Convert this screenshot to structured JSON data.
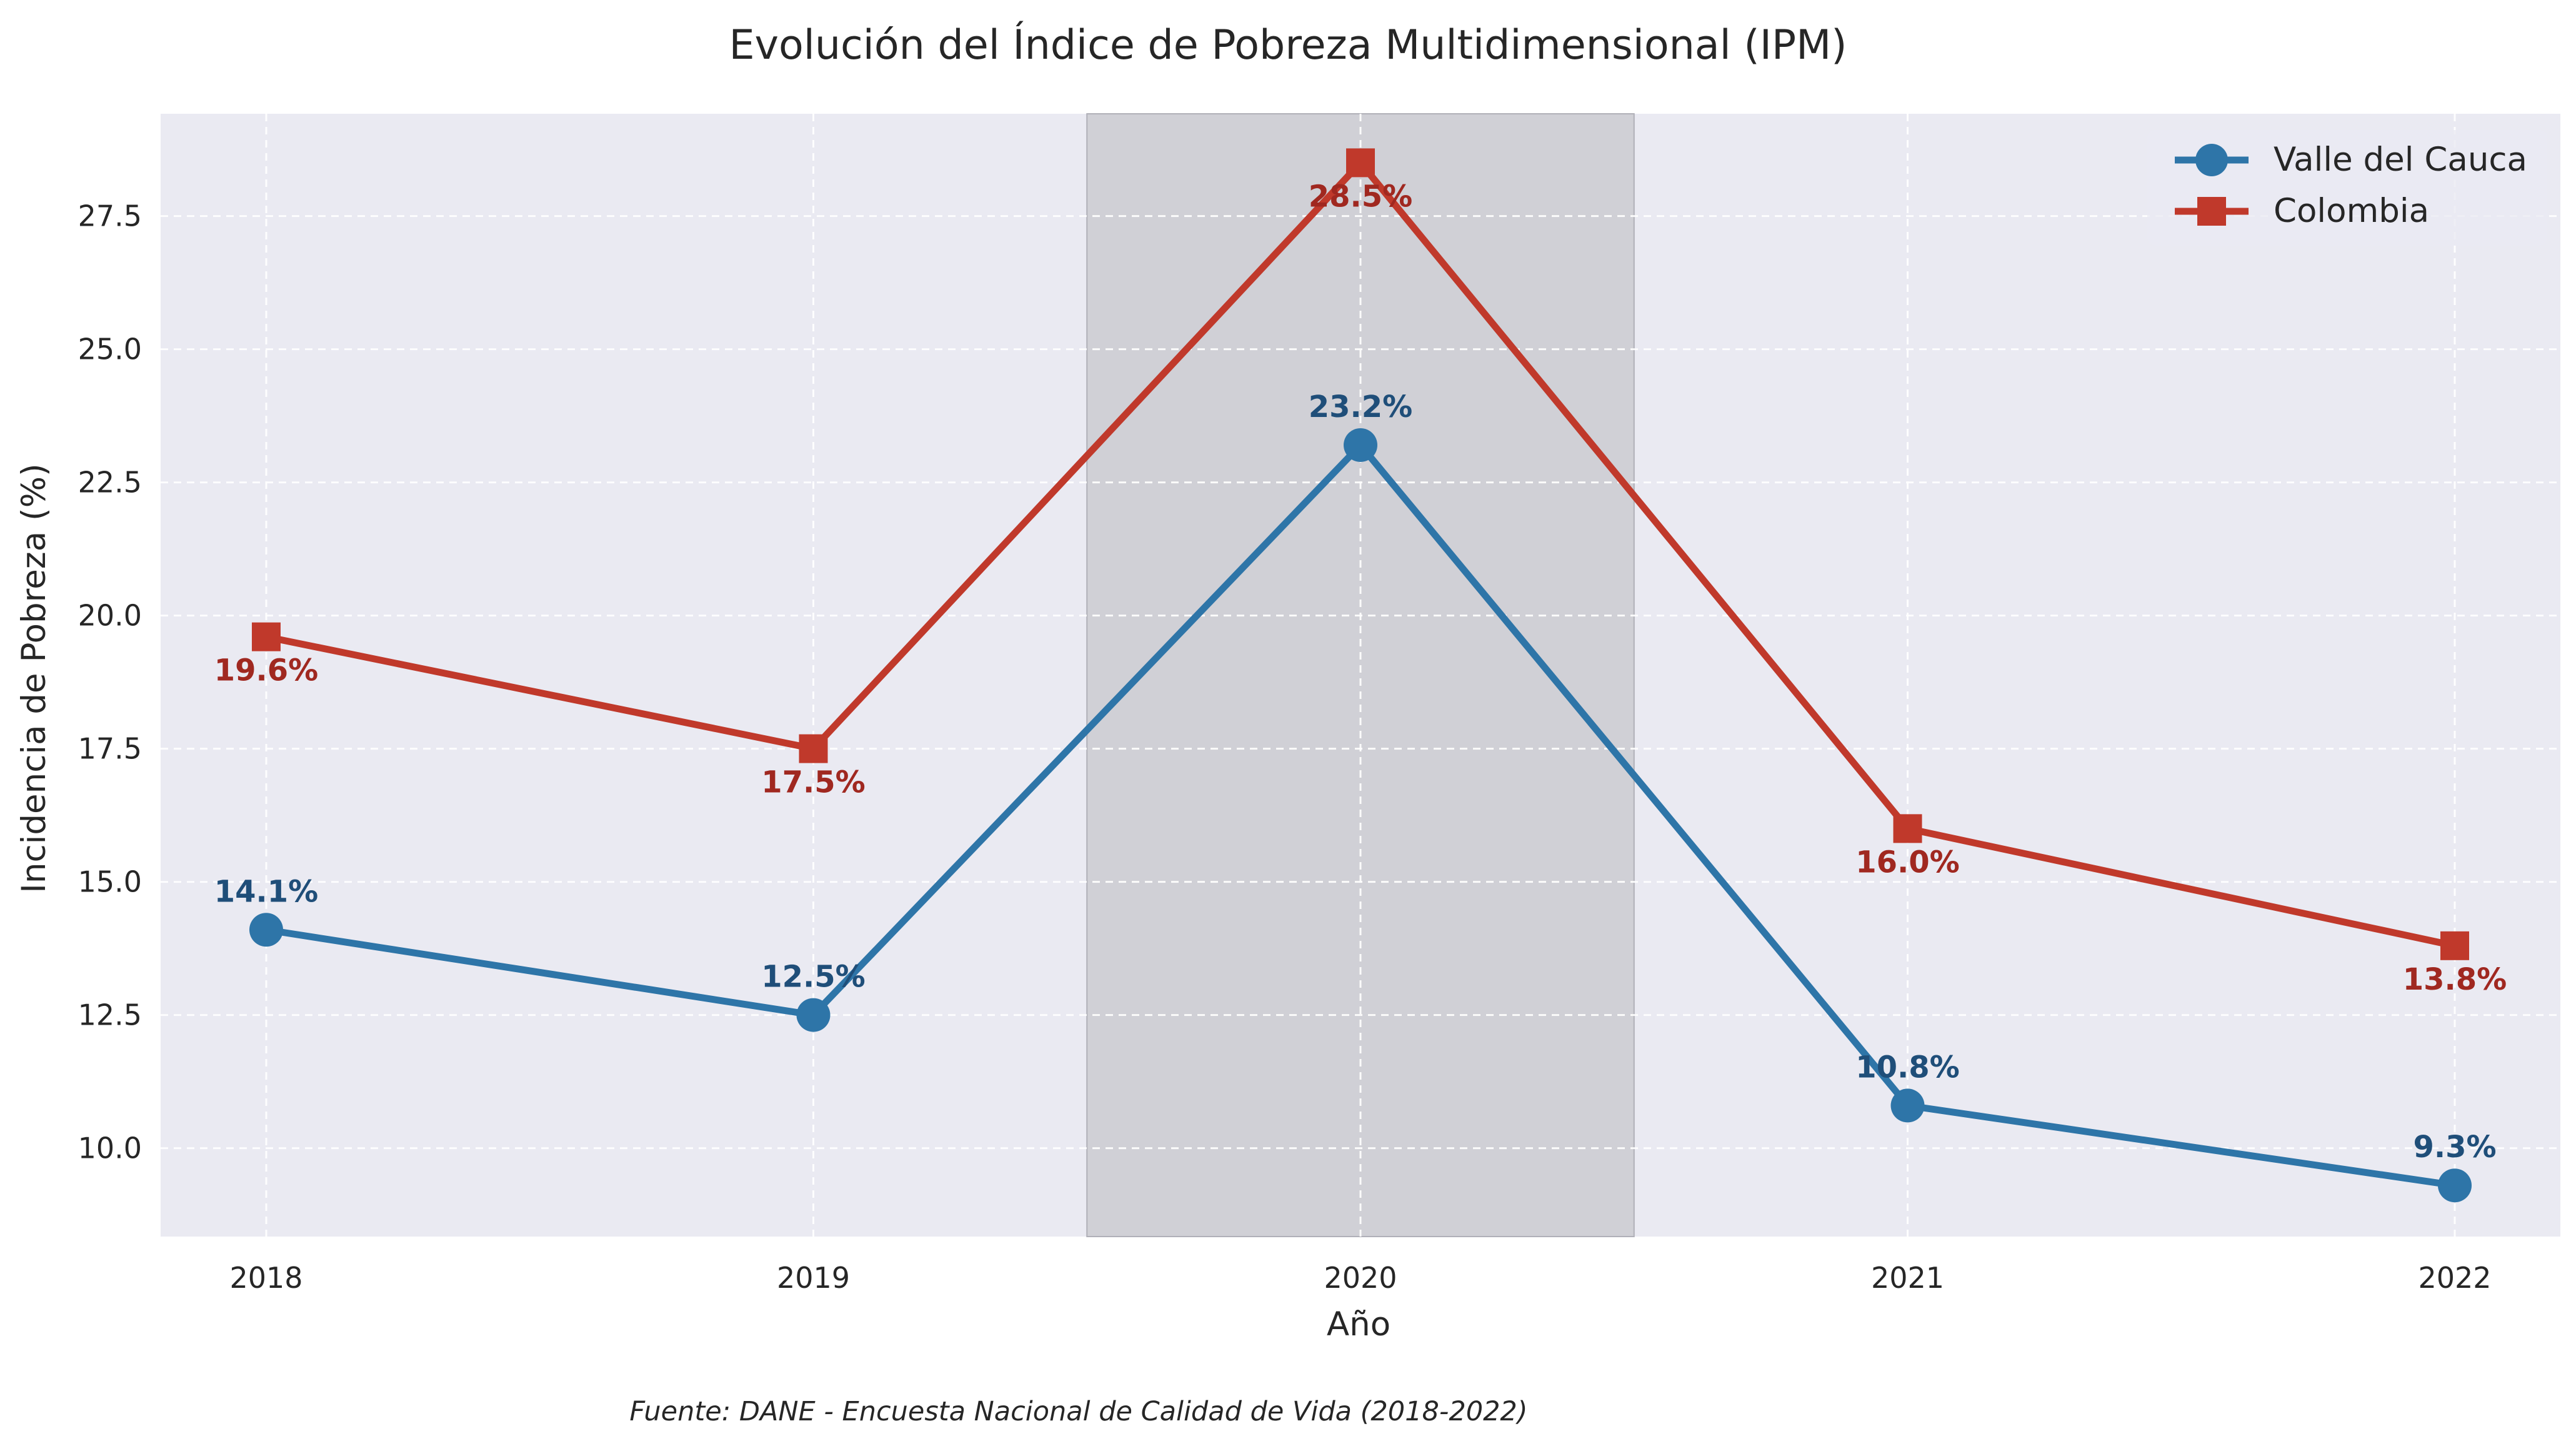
{
  "chart_data": {
    "type": "line",
    "title": "Evolución del Índice de Pobreza Multidimensional (IPM)",
    "xlabel": "Año",
    "ylabel": "Incidencia de Pobreza (%)",
    "caption": "Fuente: DANE - Encuesta Nacional de Calidad de Vida (2018-2022)",
    "categories": [
      "2018",
      "2019",
      "2020",
      "2021",
      "2022"
    ],
    "ylim": [
      8.34,
      29.42
    ],
    "yticks": [
      10.0,
      12.5,
      15.0,
      17.5,
      20.0,
      22.5,
      25.0,
      27.5
    ],
    "ytick_labels": [
      "10.0",
      "12.5",
      "15.0",
      "17.5",
      "20.0",
      "22.5",
      "25.0",
      "27.5"
    ],
    "highlight_band": {
      "from": 1.5,
      "to": 2.5,
      "color": "#b9b9c0"
    },
    "grid": true,
    "grid_style": "dashed",
    "legend_position": "top-right",
    "series": [
      {
        "name": "Valle del Cauca",
        "values": [
          14.1,
          12.5,
          23.2,
          10.8,
          9.3
        ],
        "labels": [
          "14.1%",
          "12.5%",
          "23.2%",
          "10.8%",
          "9.3%"
        ],
        "marker": "circle",
        "color": "#2e75a8",
        "label_color": "#1f4e79",
        "label_side": "above"
      },
      {
        "name": "Colombia",
        "values": [
          19.6,
          17.5,
          28.5,
          16.0,
          13.8
        ],
        "labels": [
          "19.6%",
          "17.5%",
          "28.5%",
          "16.0%",
          "13.8%"
        ],
        "marker": "square",
        "color": "#c0392b",
        "label_color": "#a02820",
        "label_side": "below"
      }
    ],
    "colors": {
      "plot_background": "#eaeaf2",
      "grid": "#ffffff",
      "text": "#262626"
    }
  }
}
